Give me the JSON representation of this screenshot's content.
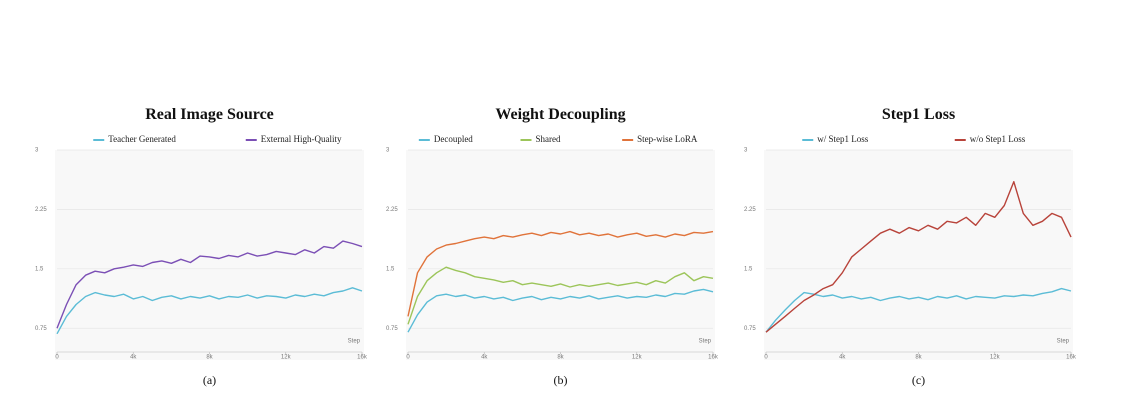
{
  "chart_data": [
    {
      "type": "line",
      "title": "Real Image Source",
      "caption": "(a)",
      "xlabel": "Step",
      "x": [
        0,
        500,
        1000,
        1500,
        2000,
        2500,
        3000,
        3500,
        4000,
        4500,
        5000,
        5500,
        6000,
        6500,
        7000,
        7500,
        8000,
        8500,
        9000,
        9500,
        10000,
        10500,
        11000,
        11500,
        12000,
        12500,
        13000,
        13500,
        14000,
        14500,
        15000,
        15500,
        16000
      ],
      "xlim": [
        0,
        16000
      ],
      "xticks": [
        0,
        {
          "value": 4000,
          "label": "4k"
        },
        {
          "value": 8000,
          "label": "8k"
        },
        {
          "value": 12000,
          "label": "12k"
        },
        {
          "value": 16000,
          "label": "16k"
        }
      ],
      "ylim": [
        0.45,
        3
      ],
      "yticks": [
        0.75,
        1.5,
        2.25,
        3
      ],
      "grid": true,
      "series": [
        {
          "name": "Teacher Generated",
          "color": "#5bbcd6",
          "values": [
            0.68,
            0.9,
            1.05,
            1.15,
            1.2,
            1.17,
            1.15,
            1.18,
            1.12,
            1.15,
            1.1,
            1.14,
            1.16,
            1.12,
            1.15,
            1.13,
            1.16,
            1.12,
            1.15,
            1.14,
            1.17,
            1.13,
            1.16,
            1.15,
            1.13,
            1.17,
            1.15,
            1.18,
            1.16,
            1.2,
            1.22,
            1.26,
            1.22
          ]
        },
        {
          "name": "External High-Quality",
          "color": "#7b4fb5",
          "values": [
            0.75,
            1.05,
            1.3,
            1.42,
            1.47,
            1.45,
            1.5,
            1.52,
            1.55,
            1.53,
            1.58,
            1.6,
            1.57,
            1.62,
            1.58,
            1.66,
            1.65,
            1.63,
            1.67,
            1.65,
            1.7,
            1.66,
            1.68,
            1.72,
            1.7,
            1.68,
            1.74,
            1.7,
            1.78,
            1.76,
            1.85,
            1.82,
            1.78
          ]
        }
      ]
    },
    {
      "type": "line",
      "title": "Weight Decoupling",
      "caption": "(b)",
      "xlabel": "Step",
      "x": [
        0,
        500,
        1000,
        1500,
        2000,
        2500,
        3000,
        3500,
        4000,
        4500,
        5000,
        5500,
        6000,
        6500,
        7000,
        7500,
        8000,
        8500,
        9000,
        9500,
        10000,
        10500,
        11000,
        11500,
        12000,
        12500,
        13000,
        13500,
        14000,
        14500,
        15000,
        15500,
        16000
      ],
      "xlim": [
        0,
        16000
      ],
      "xticks": [
        0,
        {
          "value": 4000,
          "label": "4k"
        },
        {
          "value": 8000,
          "label": "8k"
        },
        {
          "value": 12000,
          "label": "12k"
        },
        {
          "value": 16000,
          "label": "16k"
        }
      ],
      "ylim": [
        0.45,
        3
      ],
      "yticks": [
        0.75,
        1.5,
        2.25,
        3
      ],
      "grid": true,
      "series": [
        {
          "name": "Decoupled",
          "color": "#5bbcd6",
          "values": [
            0.7,
            0.92,
            1.08,
            1.16,
            1.18,
            1.15,
            1.17,
            1.13,
            1.15,
            1.12,
            1.14,
            1.1,
            1.13,
            1.15,
            1.11,
            1.14,
            1.12,
            1.15,
            1.13,
            1.16,
            1.12,
            1.14,
            1.16,
            1.13,
            1.15,
            1.14,
            1.17,
            1.15,
            1.19,
            1.18,
            1.22,
            1.24,
            1.21
          ]
        },
        {
          "name": "Shared",
          "color": "#9cc55a",
          "values": [
            0.8,
            1.15,
            1.35,
            1.45,
            1.52,
            1.48,
            1.45,
            1.4,
            1.38,
            1.36,
            1.33,
            1.35,
            1.3,
            1.32,
            1.3,
            1.28,
            1.31,
            1.27,
            1.3,
            1.28,
            1.3,
            1.32,
            1.29,
            1.31,
            1.33,
            1.3,
            1.35,
            1.32,
            1.4,
            1.45,
            1.35,
            1.4,
            1.38
          ]
        },
        {
          "name": "Step-wise LoRA",
          "color": "#e0733a",
          "values": [
            0.9,
            1.45,
            1.65,
            1.75,
            1.8,
            1.82,
            1.85,
            1.88,
            1.9,
            1.88,
            1.92,
            1.9,
            1.93,
            1.95,
            1.92,
            1.96,
            1.94,
            1.97,
            1.93,
            1.95,
            1.92,
            1.94,
            1.9,
            1.93,
            1.95,
            1.91,
            1.93,
            1.9,
            1.94,
            1.92,
            1.96,
            1.95,
            1.97
          ]
        }
      ]
    },
    {
      "type": "line",
      "title": "Step1 Loss",
      "caption": "(c)",
      "xlabel": "Step",
      "x": [
        0,
        500,
        1000,
        1500,
        2000,
        2500,
        3000,
        3500,
        4000,
        4500,
        5000,
        5500,
        6000,
        6500,
        7000,
        7500,
        8000,
        8500,
        9000,
        9500,
        10000,
        10500,
        11000,
        11500,
        12000,
        12500,
        13000,
        13500,
        14000,
        14500,
        15000,
        15500,
        16000
      ],
      "xlim": [
        0,
        16000
      ],
      "xticks": [
        0,
        {
          "value": 4000,
          "label": "4k"
        },
        {
          "value": 8000,
          "label": "8k"
        },
        {
          "value": 12000,
          "label": "12k"
        },
        {
          "value": 16000,
          "label": "16k"
        }
      ],
      "ylim": [
        0.45,
        3
      ],
      "yticks": [
        0.75,
        1.5,
        2.25,
        3
      ],
      "grid": true,
      "series": [
        {
          "name": "w/ Step1 Loss",
          "color": "#5bbcd6",
          "values": [
            0.7,
            0.85,
            0.98,
            1.1,
            1.2,
            1.18,
            1.15,
            1.17,
            1.13,
            1.15,
            1.12,
            1.14,
            1.1,
            1.13,
            1.15,
            1.12,
            1.14,
            1.11,
            1.15,
            1.13,
            1.16,
            1.12,
            1.15,
            1.14,
            1.13,
            1.16,
            1.15,
            1.17,
            1.16,
            1.19,
            1.21,
            1.25,
            1.22
          ]
        },
        {
          "name": "w/o Step1 Loss",
          "color": "#b8433a",
          "values": [
            0.7,
            0.8,
            0.9,
            1.0,
            1.1,
            1.17,
            1.25,
            1.3,
            1.45,
            1.65,
            1.75,
            1.85,
            1.95,
            2.0,
            1.95,
            2.02,
            1.98,
            2.05,
            2.0,
            2.1,
            2.08,
            2.15,
            2.05,
            2.2,
            2.15,
            2.3,
            2.6,
            2.2,
            2.05,
            2.1,
            2.2,
            2.15,
            1.9
          ]
        }
      ]
    }
  ]
}
